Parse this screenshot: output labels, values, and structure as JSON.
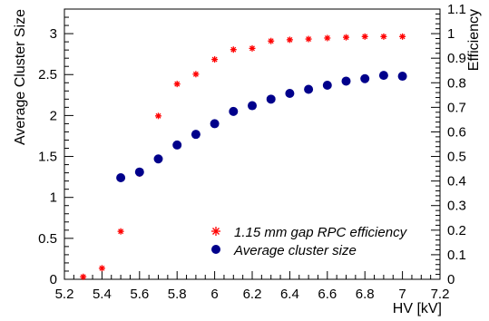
{
  "chart_data": {
    "type": "scatter",
    "xlabel": "HV [kV]",
    "ylabel": "Average Cluster Size",
    "y2label": "Efficiency",
    "xlim": [
      5.2,
      7.2
    ],
    "ylim": [
      0,
      3.3
    ],
    "y2lim": [
      0,
      1.1
    ],
    "x_ticks": [
      "5.2",
      "5.4",
      "5.6",
      "5.8",
      "6",
      "6.2",
      "6.4",
      "6.6",
      "6.8",
      "7",
      "7.2"
    ],
    "y_ticks": [
      "0",
      "0.5",
      "1",
      "1.5",
      "2",
      "2.5",
      "3"
    ],
    "y2_ticks": [
      "0",
      "0.1",
      "0.2",
      "0.3",
      "0.4",
      "0.5",
      "0.6",
      "0.7",
      "0.8",
      "0.9",
      "1",
      "1.1"
    ],
    "grid": false,
    "legend_position": "bottom-center",
    "series": [
      {
        "name": "1.15 mm gap RPC efficiency",
        "axis": "right",
        "marker": "star",
        "color": "#ff0000",
        "x": [
          5.3,
          5.4,
          5.5,
          5.6,
          5.7,
          5.8,
          5.9,
          6.0,
          6.1,
          6.2,
          6.3,
          6.4,
          6.5,
          6.6,
          6.7,
          6.8,
          6.9,
          7.0
        ],
        "y": [
          0.01,
          0.045,
          0.195,
          0.43,
          0.665,
          0.795,
          0.835,
          0.895,
          0.935,
          0.94,
          0.97,
          0.975,
          0.978,
          0.982,
          0.985,
          0.988,
          0.988,
          0.988
        ]
      },
      {
        "name": "Average cluster size",
        "axis": "left",
        "marker": "circle",
        "color": "#00008b",
        "x": [
          5.5,
          5.6,
          5.7,
          5.8,
          5.9,
          6.0,
          6.1,
          6.2,
          6.3,
          6.4,
          6.5,
          6.6,
          6.7,
          6.8,
          6.9,
          7.0
        ],
        "y": [
          1.24,
          1.31,
          1.47,
          1.64,
          1.77,
          1.9,
          2.05,
          2.12,
          2.2,
          2.27,
          2.32,
          2.37,
          2.42,
          2.45,
          2.49,
          2.48
        ]
      }
    ]
  }
}
